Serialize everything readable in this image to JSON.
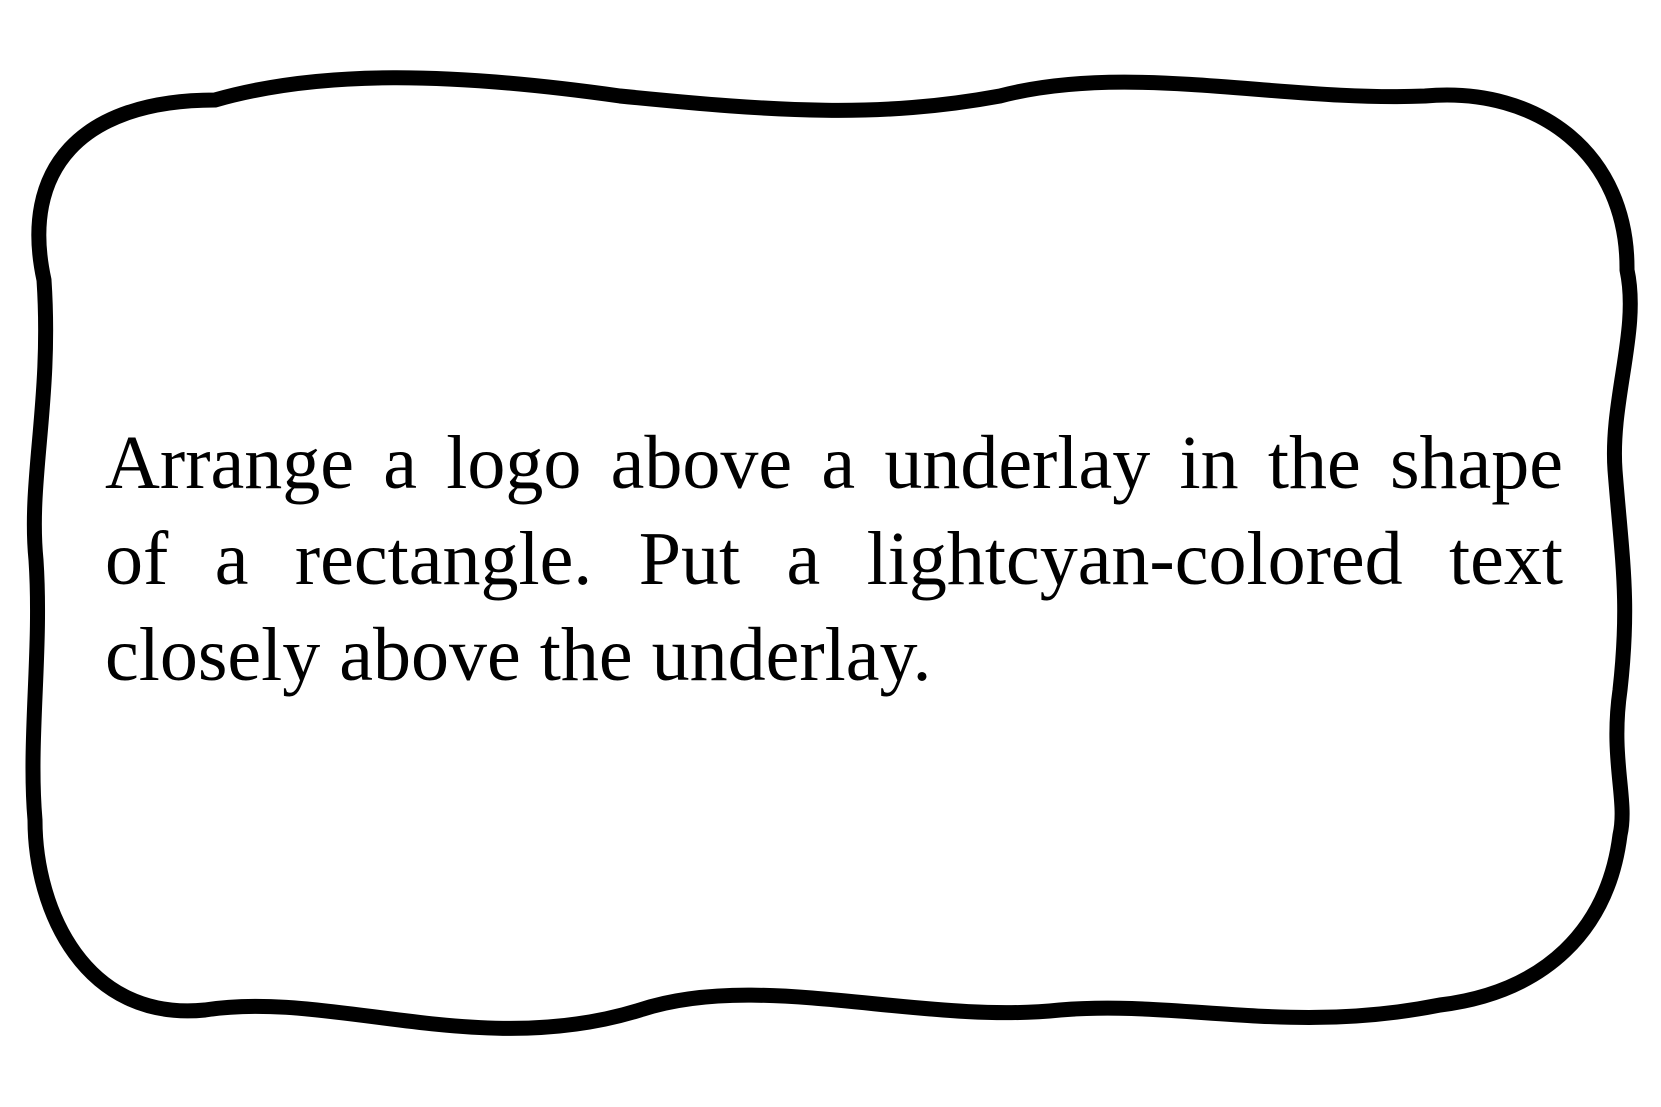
{
  "note": {
    "text": "Arrange a logo above a underlay in the shape of a rectangle. Put a lightcyan-colored text closely above the underlay."
  },
  "colors": {
    "background": "#ffffff",
    "border": "#000000",
    "text": "#000000"
  }
}
